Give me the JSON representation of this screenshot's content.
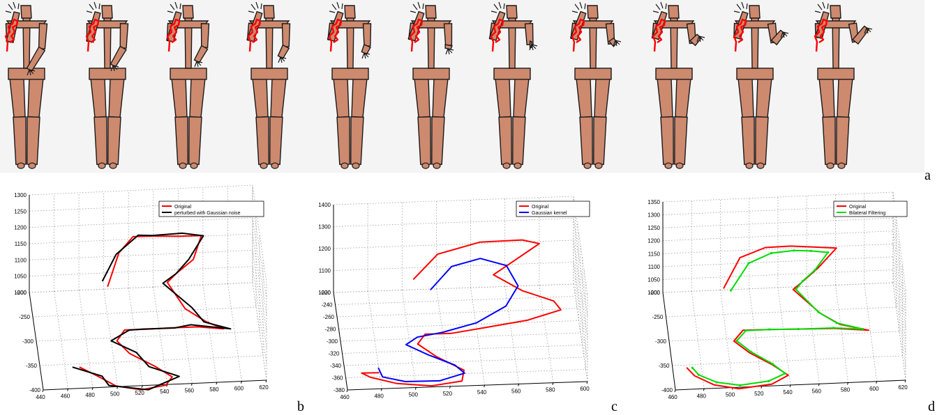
{
  "panels": {
    "a": "a",
    "b": "b",
    "c": "c",
    "d": "d"
  },
  "figures_strip": {
    "count": 11,
    "body_color": "#cd8a6f",
    "outline_color": "#1a1a1a",
    "trajectory_color": "#ff0000"
  },
  "chart_data": [
    {
      "type": "line",
      "panel": "b",
      "title": "",
      "xlabel": "",
      "ylabel": "",
      "zlabel": "",
      "x_ticks": [
        440,
        460,
        480,
        500,
        520,
        540,
        560,
        580,
        600,
        620
      ],
      "y_ticks": [
        -400,
        -350,
        -300,
        -250,
        -200
      ],
      "z_ticks": [
        1000,
        1050,
        1100,
        1150,
        1200,
        1250,
        1300
      ],
      "xlim": [
        440,
        620
      ],
      "ylim": [
        -400,
        -200
      ],
      "zlim": [
        1000,
        1300
      ],
      "grid": true,
      "legend_position": "top-right",
      "series": [
        {
          "name": "Original",
          "color": "#ff0000",
          "x": [
            500,
            510,
            522,
            540,
            560,
            578,
            570,
            556,
            548,
            560,
            576,
            590,
            570,
            548,
            530,
            512,
            505,
            514,
            533,
            546,
            540,
            520,
            500,
            486,
            472
          ],
          "y": [
            -255,
            -240,
            -228,
            -222,
            -218,
            -212,
            -240,
            -247,
            -258,
            -300,
            -315,
            -318,
            -305,
            -298,
            -292,
            -285,
            -300,
            -320,
            -345,
            -365,
            -378,
            -382,
            -375,
            -360,
            -350
          ],
          "z": [
            1090,
            1170,
            1200,
            1190,
            1180,
            1170,
            1140,
            1110,
            1100,
            1080,
            1060,
            1040,
            1030,
            1020,
            1010,
            1000,
            990,
            980,
            975,
            970,
            965,
            960,
            965,
            975,
            990
          ]
        },
        {
          "name": "perturbed with Gaussian noise",
          "color": "#000000",
          "x": [
            496,
            508,
            526,
            538,
            562,
            580,
            566,
            556,
            544,
            566,
            574,
            596,
            564,
            552,
            526,
            516,
            500,
            520,
            528,
            552,
            534,
            526,
            494,
            490,
            466
          ],
          "y": [
            -250,
            -236,
            -232,
            -214,
            -222,
            -206,
            -246,
            -241,
            -266,
            -292,
            -322,
            -312,
            -310,
            -292,
            -298,
            -279,
            -306,
            -312,
            -352,
            -358,
            -384,
            -376,
            -380,
            -354,
            -356
          ],
          "z": [
            1100,
            1160,
            1210,
            1180,
            1195,
            1160,
            1150,
            1100,
            1110,
            1070,
            1070,
            1030,
            1045,
            1010,
            1020,
            990,
            1000,
            970,
            985,
            960,
            975,
            950,
            975,
            965,
            1000
          ]
        }
      ]
    },
    {
      "type": "line",
      "panel": "c",
      "title": "",
      "xlabel": "",
      "ylabel": "",
      "zlabel": "",
      "x_ticks": [
        460,
        480,
        500,
        520,
        540,
        560,
        580,
        600
      ],
      "y_ticks": [
        -380,
        -360,
        -340,
        -320,
        -300,
        -280,
        -260,
        -240,
        -220
      ],
      "z_ticks": [
        1000,
        1100,
        1200,
        1300,
        1400
      ],
      "xlim": [
        460,
        600
      ],
      "ylim": [
        -380,
        -220
      ],
      "zlim": [
        1000,
        1400
      ],
      "grid": true,
      "legend_position": "top-right",
      "series": [
        {
          "name": "Original",
          "color": "#ff0000",
          "x": [
            505,
            520,
            545,
            570,
            580,
            560,
            552,
            568,
            586,
            590,
            570,
            545,
            525,
            510,
            505,
            515,
            530,
            528,
            510,
            490,
            475,
            470,
            480
          ],
          "y": [
            -250,
            -235,
            -225,
            -222,
            -220,
            -240,
            -245,
            -260,
            -268,
            -272,
            -280,
            -286,
            -290,
            -288,
            -300,
            -318,
            -340,
            -356,
            -362,
            -358,
            -350,
            -346,
            -350
          ],
          "z": [
            1130,
            1200,
            1220,
            1215,
            1190,
            1150,
            1125,
            1090,
            1060,
            1030,
            1010,
            1000,
            990,
            985,
            975,
            965,
            960,
            955,
            955,
            960,
            970,
            980,
            990
          ]
        },
        {
          "name": "Gaussian kernel",
          "color": "#0000ff",
          "x": [
            515,
            528,
            545,
            560,
            566,
            558,
            540,
            520,
            505,
            498,
            510,
            525,
            530,
            515,
            495,
            482,
            480
          ],
          "y": [
            -250,
            -238,
            -232,
            -236,
            -252,
            -270,
            -285,
            -293,
            -296,
            -304,
            -318,
            -334,
            -346,
            -356,
            -356,
            -350,
            -340
          ],
          "z": [
            1080,
            1150,
            1165,
            1140,
            1090,
            1050,
            1020,
            1005,
            995,
            985,
            975,
            968,
            963,
            960,
            962,
            970,
            985
          ]
        }
      ]
    },
    {
      "type": "line",
      "panel": "d",
      "title": "",
      "xlabel": "",
      "ylabel": "",
      "zlabel": "",
      "x_ticks": [
        460,
        480,
        500,
        520,
        540,
        560,
        580,
        600,
        620
      ],
      "y_ticks": [
        -400,
        -350,
        -300,
        -250,
        -200
      ],
      "z_ticks": [
        1000,
        1050,
        1100,
        1150,
        1200,
        1250,
        1300,
        1350
      ],
      "xlim": [
        460,
        620
      ],
      "ylim": [
        -400,
        -200
      ],
      "zlim": [
        1000,
        1350
      ],
      "grid": true,
      "legend_position": "top-right",
      "series": [
        {
          "name": "Original",
          "color": "#ff0000",
          "x": [
            500,
            512,
            530,
            548,
            564,
            580,
            566,
            556,
            548,
            565,
            578,
            598,
            575,
            550,
            530,
            512,
            505,
            515,
            530,
            540,
            528,
            505,
            488,
            475,
            470
          ],
          "y": [
            -250,
            -236,
            -228,
            -222,
            -218,
            -214,
            -238,
            -246,
            -258,
            -298,
            -312,
            -316,
            -304,
            -296,
            -290,
            -284,
            -300,
            -320,
            -344,
            -364,
            -378,
            -382,
            -375,
            -360,
            -350
          ],
          "z": [
            1100,
            1190,
            1210,
            1200,
            1185,
            1170,
            1140,
            1110,
            1100,
            1080,
            1060,
            1040,
            1030,
            1018,
            1010,
            1000,
            990,
            980,
            975,
            970,
            965,
            960,
            966,
            976,
            990
          ]
        },
        {
          "name": "Bilateral Filtering",
          "color": "#00dd00",
          "x": [
            505,
            518,
            534,
            550,
            562,
            574,
            564,
            555,
            550,
            564,
            576,
            594,
            574,
            550,
            530,
            514,
            507,
            516,
            530,
            538,
            526,
            506,
            490,
            478,
            474
          ],
          "y": [
            -252,
            -240,
            -232,
            -226,
            -222,
            -218,
            -240,
            -248,
            -258,
            -296,
            -310,
            -314,
            -303,
            -296,
            -290,
            -285,
            -300,
            -318,
            -342,
            -360,
            -372,
            -376,
            -370,
            -358,
            -350
          ],
          "z": [
            1095,
            1175,
            1195,
            1190,
            1178,
            1162,
            1138,
            1112,
            1100,
            1080,
            1062,
            1042,
            1030,
            1018,
            1010,
            1000,
            990,
            980,
            975,
            970,
            966,
            962,
            966,
            975,
            988
          ]
        }
      ]
    }
  ]
}
